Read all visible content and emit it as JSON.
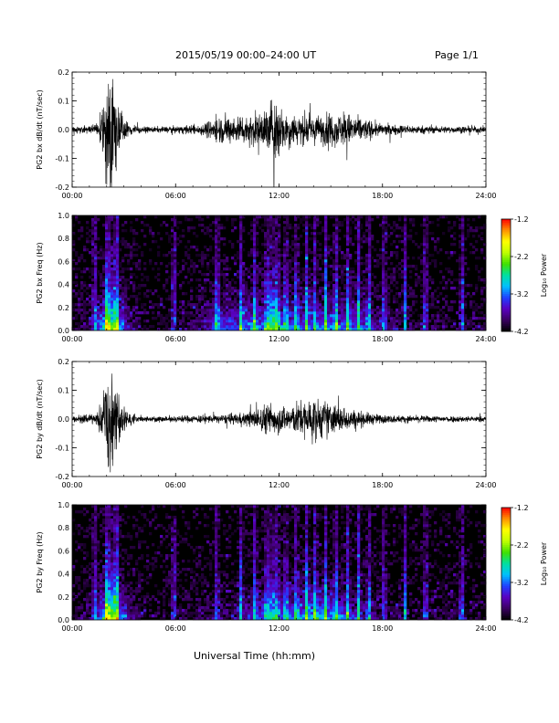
{
  "page": {
    "title": "2015/05/19  00:00–24:00 UT",
    "page_number": "Page 1/1",
    "xlabel": "Universal Time (hh:mm)"
  },
  "colorbar": {
    "ticks": [
      "-1.2",
      "-2.2",
      "-3.2",
      "-4.2"
    ],
    "label": "Log₁₀ Power",
    "range": [
      -4.2,
      -1.2
    ],
    "colors": [
      "#000000",
      "#3a0060",
      "#5a00c0",
      "#2040ff",
      "#00c0ff",
      "#00e0a0",
      "#40e000",
      "#c0ff00",
      "#ffff00",
      "#ff9000",
      "#ff0000"
    ]
  },
  "chart_data": [
    {
      "type": "line",
      "ylabel": "PG2 bx dB/dt (nT/sec)",
      "xlim": [
        0,
        24
      ],
      "ylim": [
        -0.2,
        0.2
      ],
      "x_ticks": [
        "00:00",
        "06:00",
        "12:00",
        "18:00",
        "24:00"
      ],
      "y_ticks": [
        "0.2",
        "0.1",
        "0.0",
        "-0.1",
        "-0.2"
      ],
      "line_color": "#000000",
      "amplitude_envelope": {
        "x": [
          0,
          1.4,
          1.8,
          2.0,
          2.2,
          2.4,
          2.7,
          3.2,
          4,
          6,
          7.5,
          8.5,
          9.5,
          10.5,
          11,
          11.4,
          11.8,
          12.3,
          13,
          14,
          15,
          16,
          17,
          18,
          20,
          22,
          24
        ],
        "y": [
          0.01,
          0.02,
          0.08,
          0.2,
          0.2,
          0.2,
          0.08,
          0.03,
          0.01,
          0.012,
          0.02,
          0.05,
          0.05,
          0.06,
          0.06,
          0.1,
          0.13,
          0.07,
          0.06,
          0.05,
          0.06,
          0.06,
          0.04,
          0.02,
          0.015,
          0.012,
          0.012
        ]
      }
    },
    {
      "type": "heatmap",
      "ylabel": "PG2 bx Freq (Hz)",
      "xlim": [
        0,
        24
      ],
      "ylim": [
        0,
        1.0
      ],
      "x_ticks": [
        "00:00",
        "06:00",
        "12:00",
        "18:00",
        "24:00"
      ],
      "y_ticks": [
        "1.0",
        "0.8",
        "0.6",
        "0.4",
        "0.2",
        "0.0"
      ],
      "colorbar_range": [
        -4.2,
        -1.2
      ],
      "broadband_events_hours": [
        1.3,
        2.0,
        2.2,
        2.4,
        2.6,
        5.9,
        8.4,
        9.8,
        10.6,
        11.3,
        11.6,
        11.9,
        12.4,
        13.0,
        13.6,
        14.1,
        14.7,
        15.3,
        16.0,
        16.6,
        17.2,
        18.1,
        19.3,
        20.5,
        22.6
      ]
    },
    {
      "type": "line",
      "ylabel": "PG2 by dB/dt (nT/sec)",
      "xlim": [
        0,
        24
      ],
      "ylim": [
        -0.2,
        0.2
      ],
      "x_ticks": [
        "00:00",
        "06:00",
        "12:00",
        "18:00",
        "24:00"
      ],
      "y_ticks": [
        "0.2",
        "0.1",
        "0.0",
        "-0.1",
        "-0.2"
      ],
      "line_color": "#000000",
      "amplitude_envelope": {
        "x": [
          0,
          1.4,
          1.8,
          2.0,
          2.2,
          2.4,
          2.7,
          3.2,
          4,
          6,
          7.5,
          8.5,
          9.5,
          10.5,
          11,
          11.5,
          12,
          12.5,
          13,
          13.5,
          14,
          15,
          16,
          17,
          18,
          20,
          22,
          24
        ],
        "y": [
          0.01,
          0.02,
          0.08,
          0.2,
          0.2,
          0.2,
          0.08,
          0.03,
          0.01,
          0.012,
          0.015,
          0.015,
          0.02,
          0.03,
          0.05,
          0.06,
          0.05,
          0.05,
          0.06,
          0.07,
          0.08,
          0.06,
          0.04,
          0.025,
          0.015,
          0.012,
          0.012,
          0.01
        ]
      }
    },
    {
      "type": "heatmap",
      "ylabel": "PG2 by Freq (Hz)",
      "xlim": [
        0,
        24
      ],
      "ylim": [
        0,
        1.0
      ],
      "x_ticks": [
        "00:00",
        "06:00",
        "12:00",
        "18:00",
        "24:00"
      ],
      "y_ticks": [
        "1.0",
        "0.8",
        "0.6",
        "0.4",
        "0.2",
        "0.0"
      ],
      "colorbar_range": [
        -4.2,
        -1.2
      ],
      "broadband_events_hours": [
        1.3,
        2.0,
        2.2,
        2.4,
        2.6,
        5.9,
        8.4,
        9.8,
        10.6,
        11.3,
        11.6,
        11.9,
        12.4,
        13.0,
        13.6,
        14.1,
        14.7,
        15.3,
        16.0,
        16.6,
        17.2,
        18.1,
        19.3,
        20.5,
        22.6
      ]
    }
  ]
}
